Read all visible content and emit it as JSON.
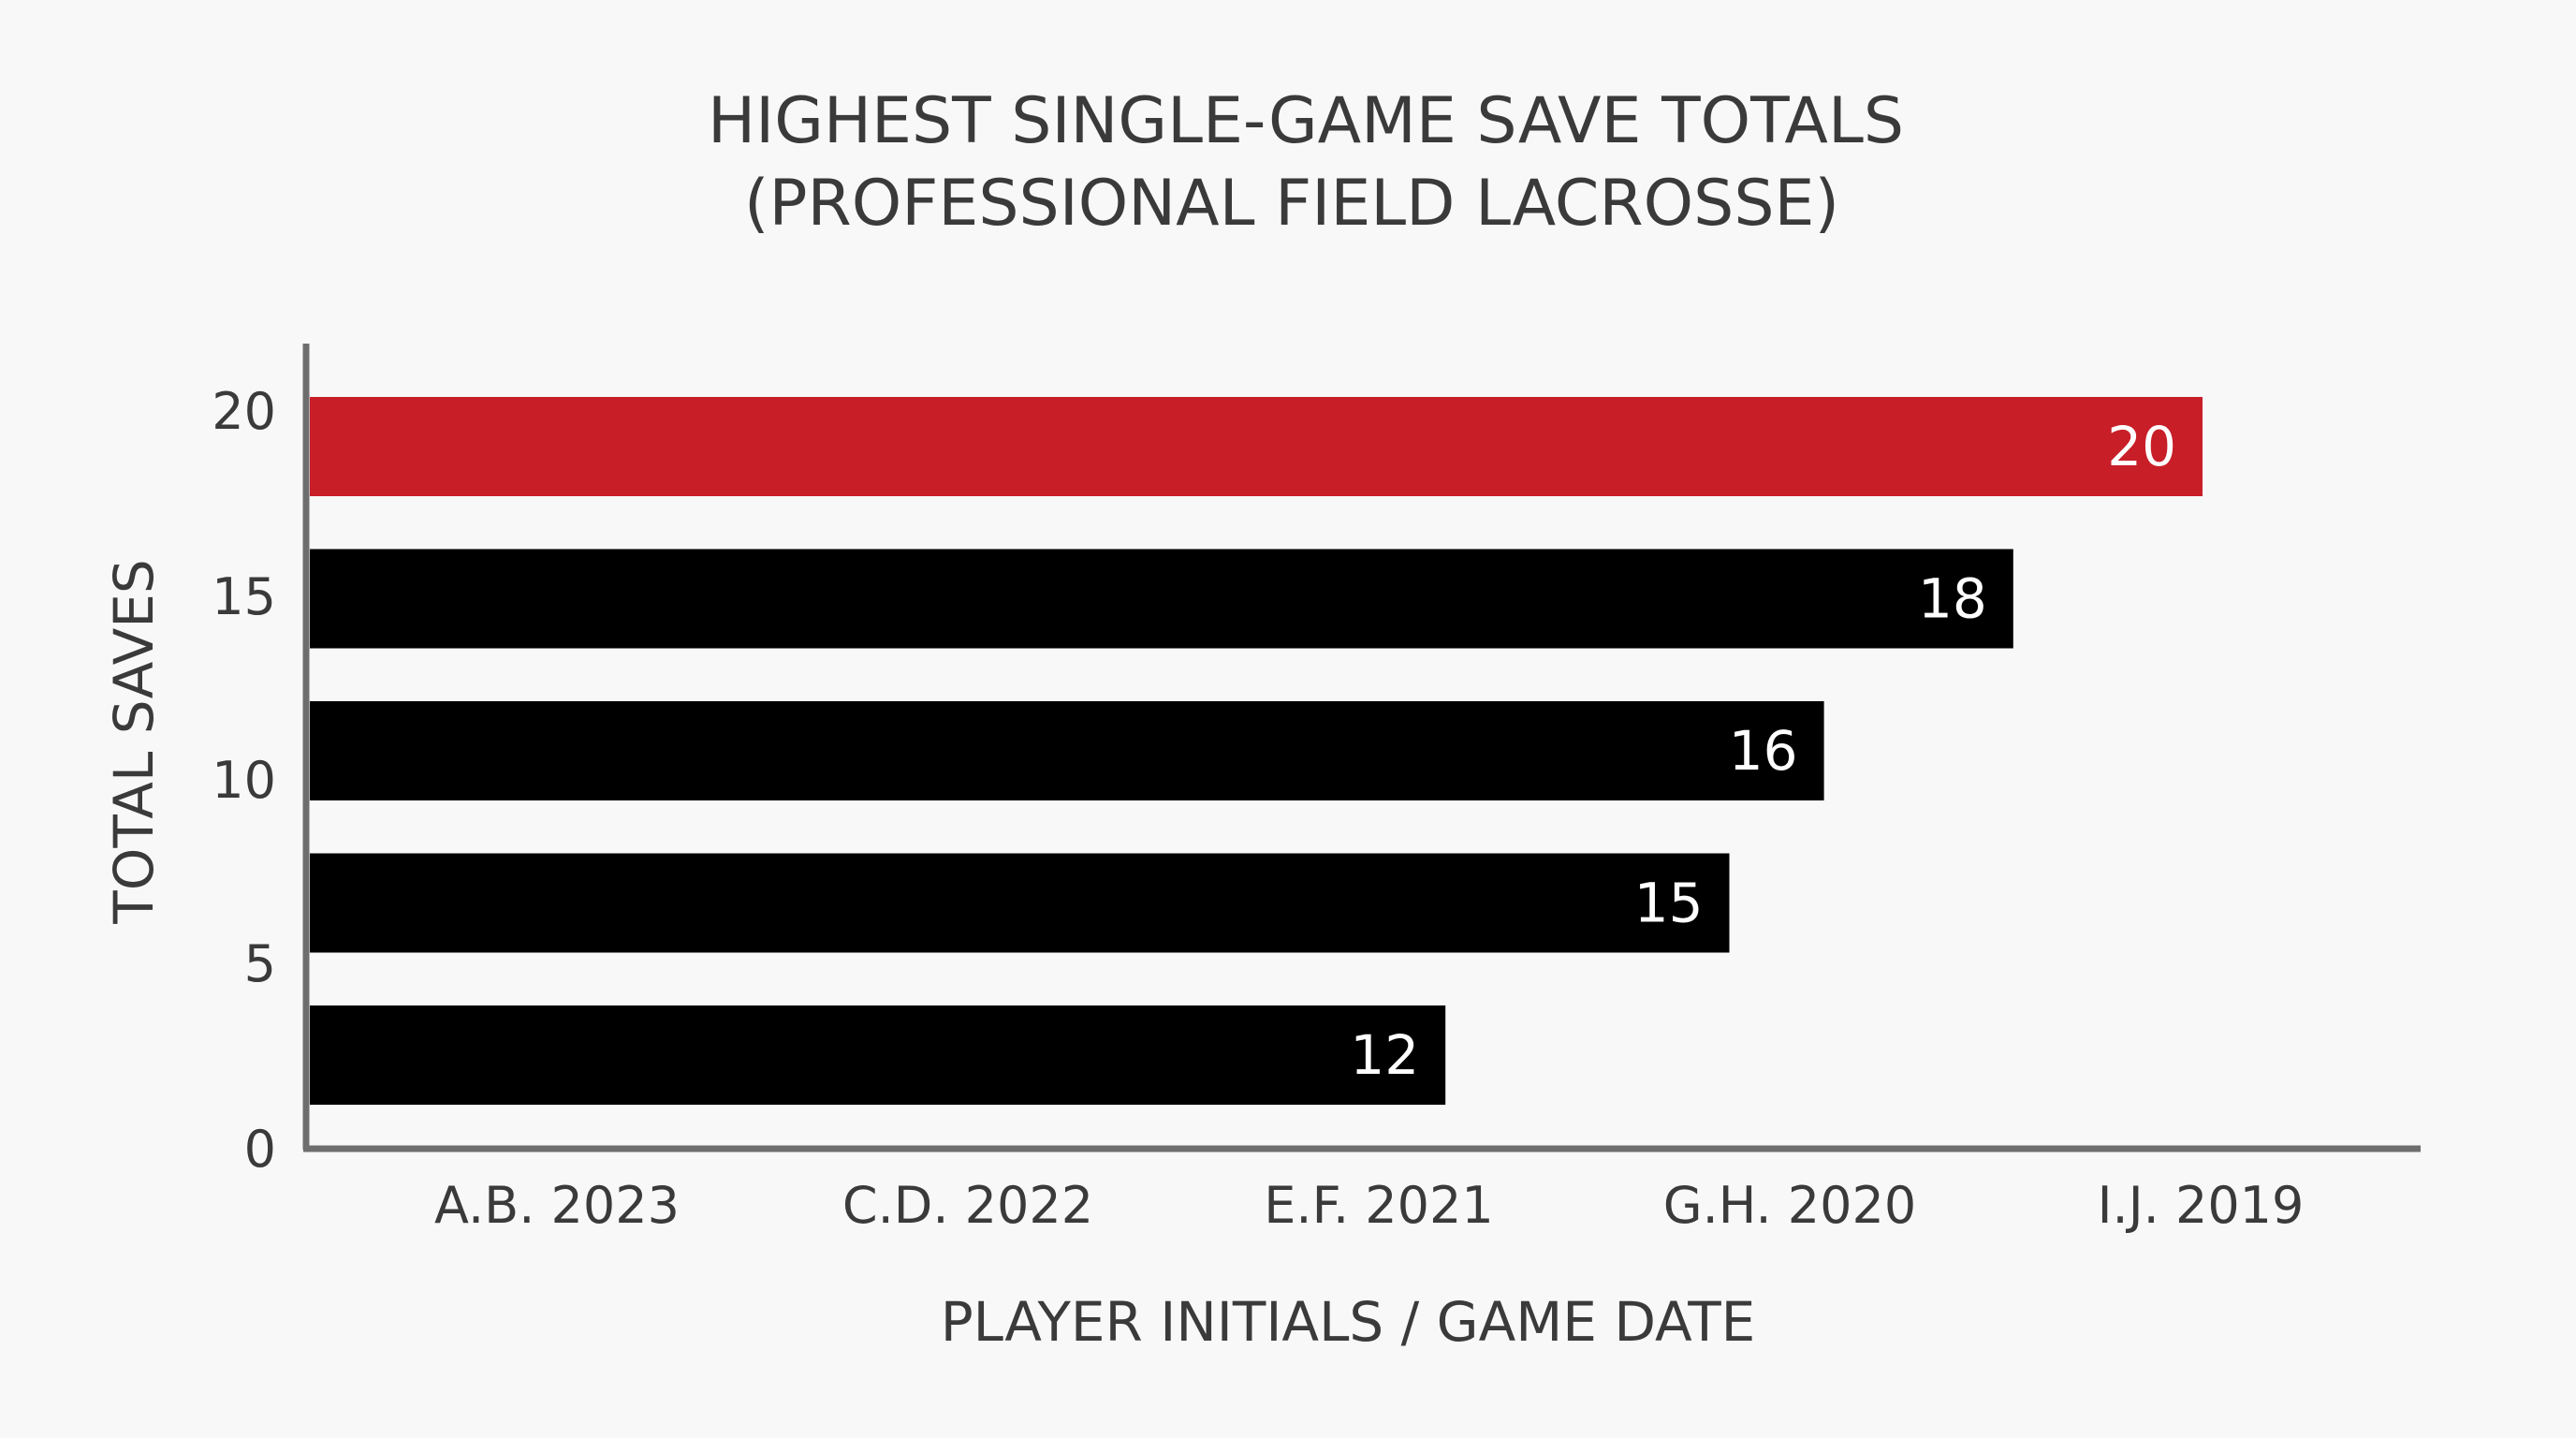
{
  "chart_data": {
    "type": "bar",
    "orientation": "horizontal",
    "title_lines": [
      "HIGHEST SINGLE-GAME SAVE TOTALS",
      "(PROFESSIONAL FIELD LACROSSE)"
    ],
    "xlabel": "PLAYER INITIALS / GAME DATE",
    "ylabel": "TOTAL SAVES",
    "categories": [
      "A.B. 2023",
      "C.D. 2022",
      "E.F. 2021",
      "G.H. 2020",
      "I.J. 2019"
    ],
    "values": [
      20,
      18,
      16,
      15,
      12
    ],
    "value_labels": [
      "20",
      "18",
      "16",
      "15",
      "12"
    ],
    "y_ticks": [
      "20",
      "15",
      "10",
      "5",
      "0"
    ],
    "value_max": 20,
    "grid": false,
    "legend": "none",
    "colors": {
      "highlight": "#c81e28",
      "bar": "#000000",
      "axis": "#6e6e6e",
      "text": "#3a3a3a",
      "background": "#f8f8f8"
    }
  }
}
